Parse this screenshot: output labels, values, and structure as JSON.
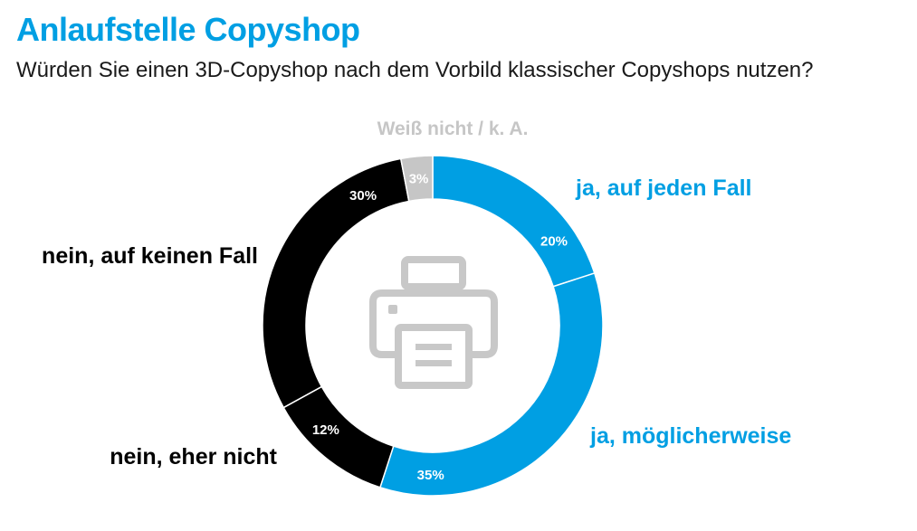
{
  "title": "Anlaufstelle Copyshop",
  "subtitle": "Würden Sie einen 3D-Copyshop nach dem Vorbild klassischer Copyshops nutzen?",
  "colors": {
    "title": "#009fe3",
    "blue": "#009fe3",
    "black": "#000000",
    "grey": "#c6c6c6",
    "icon": "#c8c8c8"
  },
  "center_icon": "printer-icon",
  "chart_data": {
    "type": "pie",
    "subtype": "donut",
    "title": "Anlaufstelle Copyshop",
    "subtitle": "Würden Sie einen 3D-Copyshop nach dem Vorbild klassischer Copyshops nutzen?",
    "slices": [
      {
        "label": "ja, auf jeden Fall",
        "value": 20,
        "value_label": "20%",
        "color": "#009fe3"
      },
      {
        "label": "ja, möglicherweise",
        "value": 35,
        "value_label": "35%",
        "color": "#009fe3"
      },
      {
        "label": "nein, eher nicht",
        "value": 12,
        "value_label": "12%",
        "color": "#000000"
      },
      {
        "label": "nein, auf keinen Fall",
        "value": 30,
        "value_label": "30%",
        "color": "#000000"
      },
      {
        "label": "Weiß nicht / k. A.",
        "value": 3,
        "value_label": "3%",
        "color": "#c6c6c6"
      }
    ]
  }
}
